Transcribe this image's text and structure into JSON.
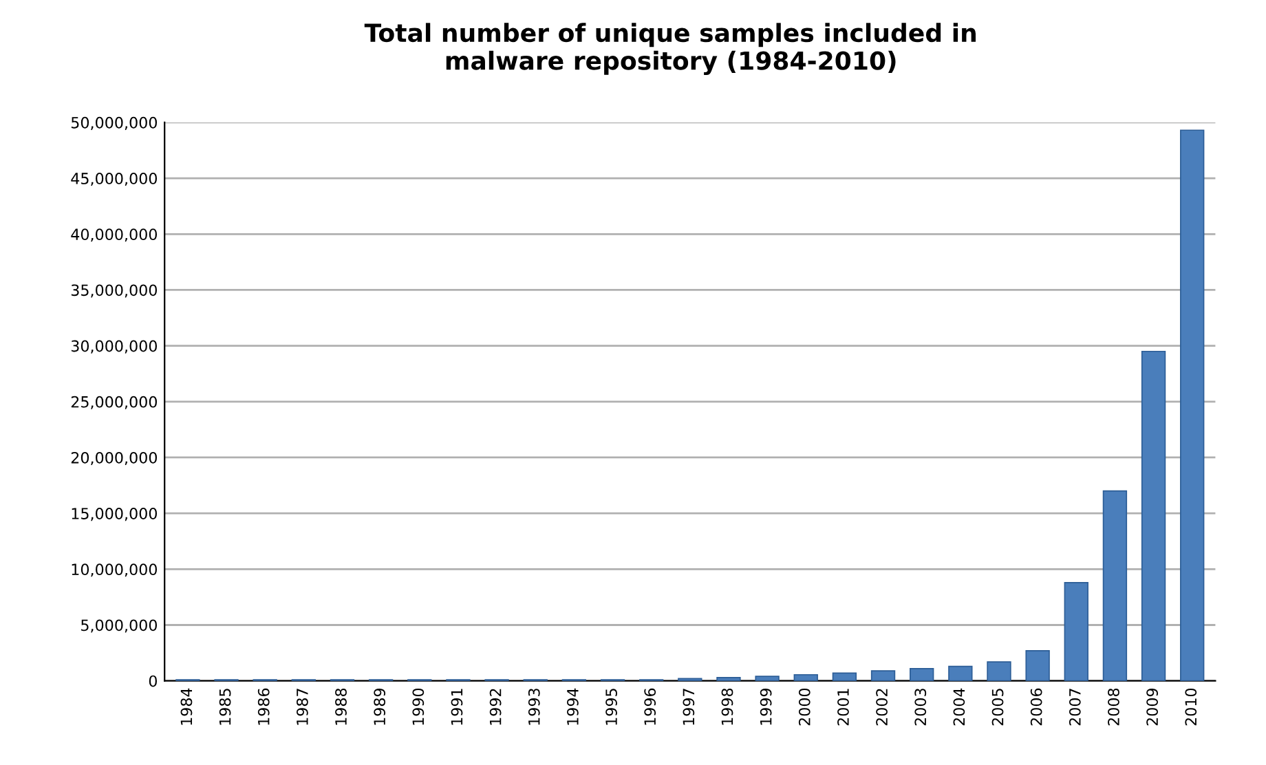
{
  "chart_data": {
    "type": "bar",
    "title": "Total number of unique samples included in\nmalware repository (1984-2010)",
    "categories": [
      "1984",
      "1985",
      "1986",
      "1987",
      "1988",
      "1989",
      "1990",
      "1991",
      "1992",
      "1993",
      "1994",
      "1995",
      "1996",
      "1997",
      "1998",
      "1999",
      "2000",
      "2001",
      "2002",
      "2003",
      "2004",
      "2005",
      "2006",
      "2007",
      "2008",
      "2009",
      "2010"
    ],
    "values": [
      100000,
      100000,
      100000,
      100000,
      100000,
      100000,
      100000,
      100000,
      100000,
      100000,
      100000,
      100000,
      100000,
      200000,
      300000,
      400000,
      550000,
      700000,
      900000,
      1100000,
      1300000,
      1700000,
      2700000,
      8800000,
      17000000,
      29500000,
      49300000
    ],
    "color": "#4a7ebb",
    "ylim": [
      0,
      50000000
    ],
    "yticks": [
      0,
      {
        "value": 5000000,
        "label": "5,000,000"
      },
      {
        "value": 10000000,
        "label": "10,000,000"
      },
      {
        "value": 15000000,
        "label": "15,000,000"
      },
      {
        "value": 20000000,
        "label": "20,000,000"
      },
      {
        "value": 25000000,
        "label": "25,000,000"
      },
      {
        "value": 30000000,
        "label": "30,000,000"
      },
      {
        "value": 35000000,
        "label": "35,000,000"
      },
      {
        "value": 40000000,
        "label": "40,000,000"
      },
      {
        "value": 45000000,
        "label": "45,000,000"
      },
      {
        "value": 50000000,
        "label": "50,000,000"
      }
    ],
    "grid": "y"
  }
}
